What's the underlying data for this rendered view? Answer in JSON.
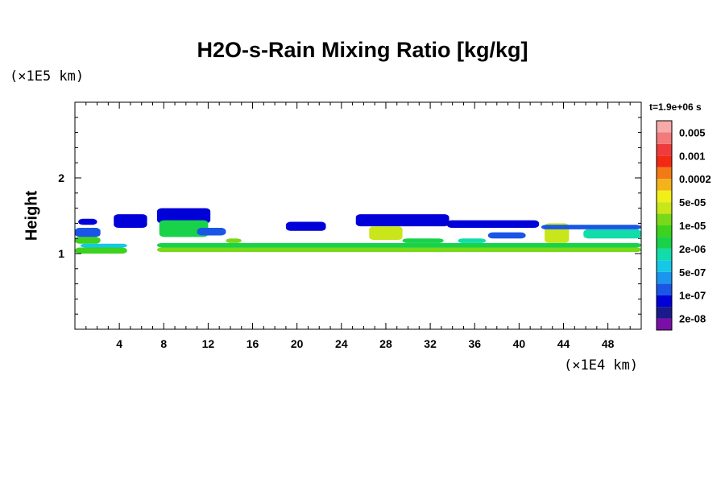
{
  "chart_data": {
    "type": "heatmap",
    "title": "H2O-s-Rain Mixing Ratio [kg/kg]",
    "xlabel": "",
    "ylabel": "Height",
    "x_unit_label": "(×1E4 km)",
    "y_unit_label": "(×1E5 km)",
    "time_label": "t=1.9e+06 s",
    "xlim": [
      0,
      51
    ],
    "ylim": [
      0,
      3
    ],
    "x_ticks": [
      4,
      8,
      12,
      16,
      20,
      24,
      28,
      32,
      36,
      40,
      44,
      48
    ],
    "x_tick_labels": [
      "4",
      "8",
      "12",
      "16",
      "20",
      "24",
      "28",
      "32",
      "36",
      "40",
      "44",
      "48"
    ],
    "y_ticks": [
      1,
      2
    ],
    "y_tick_labels": [
      "1",
      "2"
    ],
    "colorbar": {
      "colors": [
        "#7a0fa8",
        "#1a1a8a",
        "#0000d8",
        "#1a56e6",
        "#1a96ee",
        "#14c8e6",
        "#12dcaa",
        "#18d24a",
        "#3cd21e",
        "#7ad81a",
        "#c8e61a",
        "#f2ee1a",
        "#f2b41a",
        "#f27a14",
        "#f22a14",
        "#ee3c3c",
        "#f27a7a",
        "#f6aaaa"
      ],
      "labels": [
        "2e-08",
        "1e-07",
        "5e-07",
        "2e-06",
        "1e-05",
        "5e-05",
        "0.0002",
        "0.001",
        "0.005"
      ]
    },
    "regions": [
      {
        "x": [
          0,
          2.3
        ],
        "y": [
          1.22,
          1.34
        ],
        "level": 3
      },
      {
        "x": [
          0,
          2.3
        ],
        "y": [
          1.13,
          1.22
        ],
        "level": 8
      },
      {
        "x": [
          0,
          4.7
        ],
        "y": [
          1.0,
          1.08
        ],
        "level": 8
      },
      {
        "x": [
          0.5,
          4.7
        ],
        "y": [
          1.08,
          1.13
        ],
        "level": 5
      },
      {
        "x": [
          0.3,
          2.0
        ],
        "y": [
          1.38,
          1.46
        ],
        "level": 2
      },
      {
        "x": [
          3.5,
          6.5
        ],
        "y": [
          1.34,
          1.52
        ],
        "level": 2
      },
      {
        "x": [
          7.4,
          12.2
        ],
        "y": [
          1.4,
          1.6
        ],
        "level": 2
      },
      {
        "x": [
          7.6,
          12.0
        ],
        "y": [
          1.22,
          1.44
        ],
        "level": 7
      },
      {
        "x": [
          11.0,
          13.6
        ],
        "y": [
          1.24,
          1.34
        ],
        "level": 3
      },
      {
        "x": [
          7.4,
          51
        ],
        "y": [
          1.08,
          1.14
        ],
        "level": 7
      },
      {
        "x": [
          7.4,
          51
        ],
        "y": [
          1.02,
          1.08
        ],
        "level": 9
      },
      {
        "x": [
          13.6,
          15.0
        ],
        "y": [
          1.14,
          1.2
        ],
        "level": 9
      },
      {
        "x": [
          19.0,
          22.6
        ],
        "y": [
          1.3,
          1.42
        ],
        "level": 2
      },
      {
        "x": [
          25.3,
          33.7
        ],
        "y": [
          1.36,
          1.52
        ],
        "level": 2
      },
      {
        "x": [
          26.5,
          29.5
        ],
        "y": [
          1.18,
          1.36
        ],
        "level": 10
      },
      {
        "x": [
          29.5,
          33.2
        ],
        "y": [
          1.14,
          1.2
        ],
        "level": 7
      },
      {
        "x": [
          33.5,
          41.8
        ],
        "y": [
          1.34,
          1.44
        ],
        "level": 2
      },
      {
        "x": [
          34.5,
          37.0
        ],
        "y": [
          1.14,
          1.2
        ],
        "level": 6
      },
      {
        "x": [
          37.2,
          40.6
        ],
        "y": [
          1.2,
          1.28
        ],
        "level": 3
      },
      {
        "x": [
          42.3,
          44.5
        ],
        "y": [
          1.14,
          1.4
        ],
        "level": 10
      },
      {
        "x": [
          45.8,
          51
        ],
        "y": [
          1.2,
          1.32
        ],
        "level": 6
      },
      {
        "x": [
          42.0,
          51
        ],
        "y": [
          1.32,
          1.38
        ],
        "level": 3
      }
    ]
  }
}
